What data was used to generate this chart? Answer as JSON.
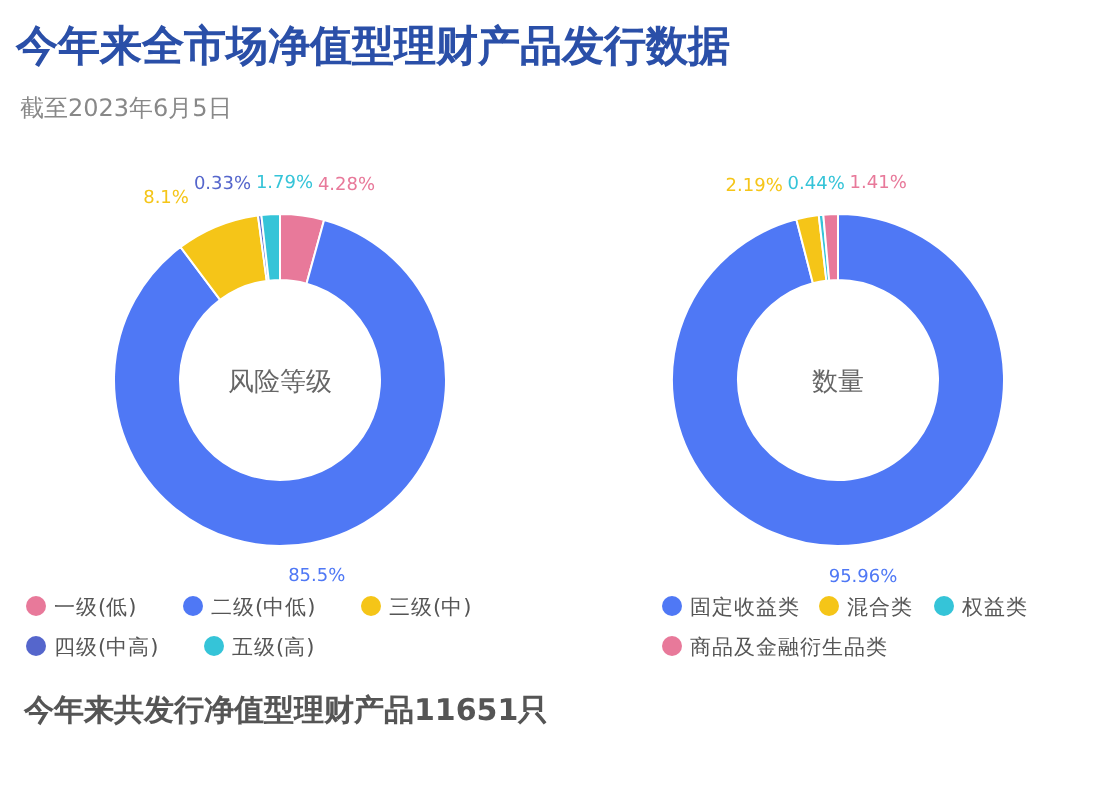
{
  "chart_data": [
    {
      "type": "donut",
      "title": "今年来全市场净值型理财产品发行数据",
      "subtitle": "截至2023年6月5日",
      "categories": [
        "一级(低)",
        "二级(中低)",
        "三级(中)",
        "四级(中高)",
        "五级(高)"
      ],
      "values": [
        4.28,
        85.5,
        8.1,
        0.33,
        1.79
      ],
      "value_labels": [
        "4.28%",
        "85.5%",
        "8.1%",
        "0.33%",
        "1.79%"
      ],
      "colors": [
        "#e8799a",
        "#4f78f5",
        "#f5c518",
        "#5566cc",
        "#35c4d8"
      ],
      "legend": "bottom",
      "annotations": [
        "风险等级",
        "今年来共发行净值型理财产品11651只"
      ]
    },
    {
      "type": "donut",
      "categories": [
        "固定收益类",
        "混合类",
        "权益类",
        "商品及金融衍生品类"
      ],
      "values": [
        95.96,
        2.19,
        0.44,
        1.41
      ],
      "value_labels": [
        "95.96%",
        "2.19%",
        "0.44%",
        "1.41%"
      ],
      "colors": [
        "#4f78f5",
        "#f5c518",
        "#35c4d8",
        "#e8799a"
      ],
      "legend": "bottom",
      "annotations": [
        "数量"
      ]
    }
  ]
}
